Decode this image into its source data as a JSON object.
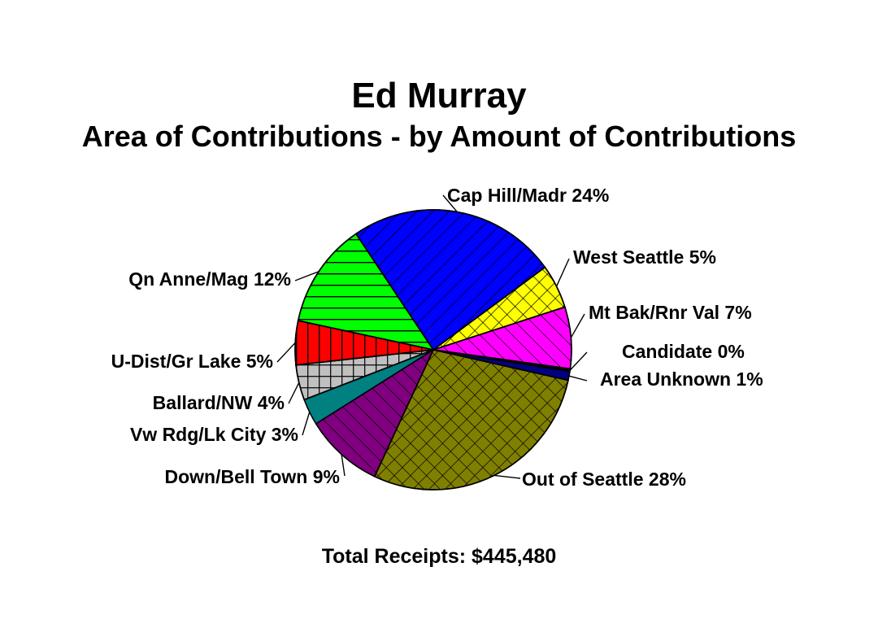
{
  "chart_data": {
    "type": "pie",
    "title": "Ed Murray",
    "subtitle": "Area of Contributions - by Amount of Contributions",
    "footer": "Total Receipts: $445,480",
    "slices": [
      {
        "label": "Cap Hill/Madr 24%",
        "value": 24,
        "color": "#0000ff",
        "pattern": "diag-down"
      },
      {
        "label": "West Seattle 5%",
        "value": 5,
        "color": "#ffff00",
        "pattern": "crosshatch"
      },
      {
        "label": "Mt Bak/Rnr Val 7%",
        "value": 7,
        "color": "#ff00ff",
        "pattern": "diag-up"
      },
      {
        "label": "Candidate 0%",
        "value": 0.3,
        "color": "#000000",
        "pattern": "none"
      },
      {
        "label": "Area Unknown 1%",
        "value": 1,
        "color": "#000080",
        "pattern": "none"
      },
      {
        "label": "Out of Seattle 28%",
        "value": 28,
        "color": "#808000",
        "pattern": "crosshatch"
      },
      {
        "label": "Down/Bell Town 9%",
        "value": 9,
        "color": "#800080",
        "pattern": "diag-up"
      },
      {
        "label": "Vw Rdg/Lk City 3%",
        "value": 3,
        "color": "#008080",
        "pattern": "none"
      },
      {
        "label": "Ballard/NW 4%",
        "value": 4,
        "color": "#c0c0c0",
        "pattern": "grid"
      },
      {
        "label": "U-Dist/Gr Lake 5%",
        "value": 5,
        "color": "#ff0000",
        "pattern": "vertical"
      },
      {
        "label": "Qn Anne/Mag 12%",
        "value": 12,
        "color": "#00ff00",
        "pattern": "horizontal"
      }
    ]
  }
}
